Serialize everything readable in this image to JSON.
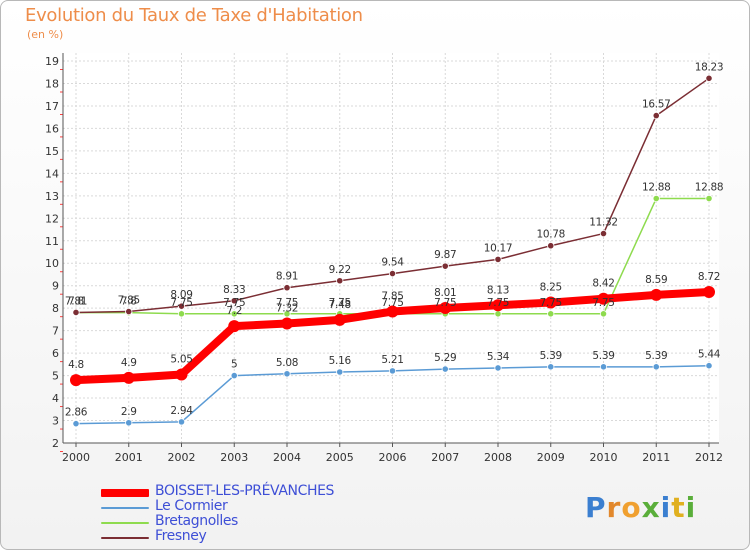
{
  "title": "Evolution du Taux de Taxe d'Habitation",
  "subtitle": "(en %)",
  "logo": {
    "text": "Proxiti",
    "colors": [
      "#3b7fd0",
      "#e2882c",
      "#f0a030",
      "#5aae3a",
      "#3b7fd0",
      "#e0b020",
      "#5aae3a"
    ]
  },
  "chart_data": {
    "type": "line",
    "x": [
      "2000",
      "2001",
      "2002",
      "2003",
      "2004",
      "2005",
      "2006",
      "2007",
      "2008",
      "2009",
      "2010",
      "2011",
      "2012"
    ],
    "ylim": [
      2,
      19
    ],
    "yticks": [
      "2",
      "3",
      "4",
      "5",
      "6",
      "7",
      "8",
      "9",
      "10",
      "11",
      "12",
      "13",
      "14",
      "15",
      "16",
      "17",
      "18",
      "19"
    ],
    "grid": true,
    "series": [
      {
        "name": "BOISSET-LES-PRÉVANCHES",
        "color": "#ff0000",
        "thick": true,
        "values": [
          4.8,
          4.9,
          5.05,
          7.2,
          7.32,
          7.48,
          7.85,
          8.01,
          8.13,
          8.25,
          8.42,
          8.59,
          8.72
        ],
        "labels": [
          "4.8",
          "4.9",
          "5.05",
          "7.2",
          "7.32",
          "7.48",
          "7.85",
          "8.01",
          "8.13",
          "8.25",
          "8.42",
          "8.59",
          "8.72"
        ]
      },
      {
        "name": "Le Cormier",
        "color": "#5b9bd5",
        "thick": false,
        "values": [
          2.86,
          2.9,
          2.94,
          5,
          5.08,
          5.16,
          5.21,
          5.29,
          5.34,
          5.39,
          5.39,
          5.39,
          5.44
        ],
        "labels": [
          "2.86",
          "2.9",
          "2.94",
          "5",
          "5.08",
          "5.16",
          "5.21",
          "5.29",
          "5.34",
          "5.39",
          "5.39",
          "5.39",
          "5.44"
        ]
      },
      {
        "name": "Bretagnolles",
        "color": "#8edb4e",
        "thick": false,
        "values": [
          7.8,
          7.8,
          7.75,
          7.75,
          7.75,
          7.75,
          7.75,
          7.75,
          7.75,
          7.75,
          7.75,
          12.88,
          12.88
        ],
        "labels": [
          "7.8",
          "7.8",
          "7.75",
          "7.75",
          "7.75",
          "7.75",
          "7.75",
          "7.75",
          "7.75",
          "7.75",
          "7.75",
          "12.88",
          "12.88"
        ]
      },
      {
        "name": "Fresney",
        "color": "#7b2e34",
        "thick": false,
        "values": [
          7.81,
          7.85,
          8.09,
          8.33,
          8.91,
          9.22,
          9.54,
          9.87,
          10.17,
          10.78,
          11.32,
          16.57,
          18.23
        ],
        "labels": [
          "7.81",
          "7.85",
          "8.09",
          "8.33",
          "8.91",
          "9.22",
          "9.54",
          "9.87",
          "10.17",
          "10.78",
          "11.32",
          "16.57",
          "18.23"
        ]
      }
    ]
  }
}
